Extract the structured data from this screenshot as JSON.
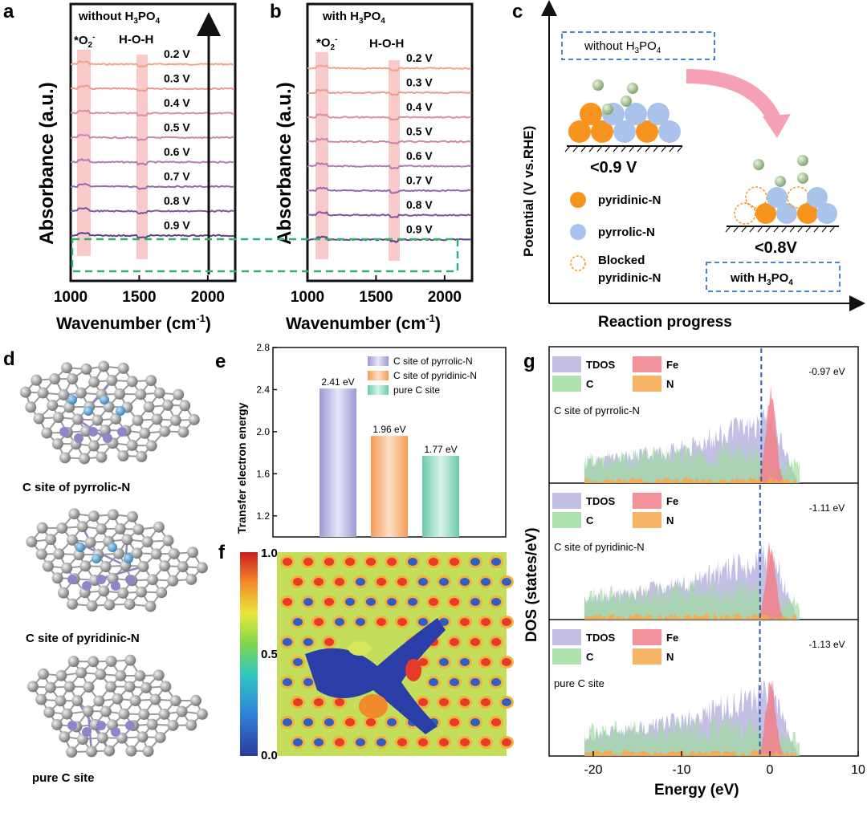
{
  "panels": {
    "a": "a",
    "b": "b",
    "c": "c",
    "d": "d",
    "e": "e",
    "f": "f",
    "g": "g"
  },
  "colors": {
    "pink_band": "#f4a6a6",
    "green_dash": "#2db36f",
    "blue_dash": "#4a86d0",
    "orange": "#f7941d",
    "blue_atom": "#a9c3ea",
    "pyrrolic": "#b7b7e0",
    "pyridinic": "#f8b27a",
    "pure_c": "#8fd8c0",
    "tdos": "#b8b4e0",
    "fe": "#f27f8a",
    "c_dos": "#9fdca0",
    "n_dos": "#f7a74c"
  },
  "chart_data": [
    {
      "panel": "a",
      "type": "line",
      "title_main": "without H",
      "title_sub": "3",
      "title_mid": "PO",
      "title_sub2": "4",
      "xlabel": "Wavenumber (cm",
      "xlabel_sup": "-1",
      "xlabel_end": ")",
      "ylabel": "Absorbance (a.u.)",
      "xticks": [
        "1000",
        "1500",
        "2000"
      ],
      "xlim": [
        1000,
        2200
      ],
      "band_labels": {
        "o2": "*O",
        "o2_sub": "2",
        "o2_sup": "-",
        "hoh": "H-O-H"
      },
      "series": [
        {
          "name": "0.2 V",
          "color": "#f2a488"
        },
        {
          "name": "0.3 V",
          "color": "#ee9a8e"
        },
        {
          "name": "0.4 V",
          "color": "#dd8fa0"
        },
        {
          "name": "0.5 V",
          "color": "#c886ad"
        },
        {
          "name": "0.6 V",
          "color": "#b07cb2"
        },
        {
          "name": "0.7 V",
          "color": "#9669ad"
        },
        {
          "name": "0.8 V",
          "color": "#7e579f"
        },
        {
          "name": "0.9 V",
          "color": "#5e3f8a"
        }
      ]
    },
    {
      "panel": "b",
      "type": "line",
      "title_main": "with H",
      "title_sub": "3",
      "title_mid": "PO",
      "title_sub2": "4",
      "xlabel": "Wavenumber (cm",
      "xlabel_sup": "-1",
      "xlabel_end": ")",
      "ylabel": "Absorbance (a.u.)",
      "xticks": [
        "1000",
        "1500",
        "2000"
      ],
      "xlim": [
        1000,
        2200
      ],
      "band_labels": {
        "o2": "*O",
        "o2_sub": "2",
        "o2_sup": "-",
        "hoh": "H-O-H"
      },
      "series": [
        {
          "name": "0.2 V",
          "color": "#f2a488"
        },
        {
          "name": "0.3 V",
          "color": "#ee9a8e"
        },
        {
          "name": "0.4 V",
          "color": "#dd8fa0"
        },
        {
          "name": "0.5 V",
          "color": "#c886ad"
        },
        {
          "name": "0.6 V",
          "color": "#b07cb2"
        },
        {
          "name": "0.7 V",
          "color": "#9669ad"
        },
        {
          "name": "0.8 V",
          "color": "#7e579f"
        },
        {
          "name": "0.9 V",
          "color": "#5e3f8a"
        }
      ]
    },
    {
      "panel": "e",
      "type": "bar",
      "ylabel": "Transfer electron energy",
      "yticks": [
        "1.2",
        "1.6",
        "2.0",
        "2.4",
        "2.8"
      ],
      "ylim": [
        1.0,
        2.8
      ],
      "categories": [
        "C site of pyrrolic-N",
        "C site of pyridinic-N",
        "pure C site"
      ],
      "values": [
        2.41,
        1.96,
        1.77
      ],
      "value_labels": [
        "2.41 eV",
        "1.96 eV",
        "1.77 eV"
      ]
    },
    {
      "panel": "g",
      "type": "area",
      "xlabel": "Energy (eV)",
      "ylabel": "DOS (states/eV)",
      "xticks": [
        "-20",
        "-10",
        "0",
        "10"
      ],
      "xlim": [
        -25,
        10
      ],
      "legend": [
        "TDOS",
        "Fe",
        "C",
        "N"
      ],
      "subpanels": [
        {
          "label": "C site of pyrrolic-N",
          "fermi_label": "-0.97 eV",
          "fermi": -0.97
        },
        {
          "label": "C site of pyridinic-N",
          "fermi_label": "-1.11 eV",
          "fermi": -1.11
        },
        {
          "label": "pure C site",
          "fermi_label": "-1.13 eV",
          "fermi": -1.13
        }
      ]
    }
  ],
  "panel_c": {
    "ylabel": "Potential (V vs.RHE)",
    "xlabel": "Reaction progress",
    "box_without": "without H",
    "box_with": "with H",
    "box_sub1": "3",
    "box_mid": "PO",
    "box_sub2": "4",
    "potential_1": "<0.9 V",
    "potential_2": "<0.8V",
    "legend": [
      "pyridinic-N",
      "pyrrolic-N",
      "Blocked",
      "pyridinic-N"
    ]
  },
  "panel_d": {
    "labels": [
      "C site of pyrrolic-N",
      "C site of pyridinic-N",
      "pure C site"
    ]
  },
  "panel_f": {
    "colorbar_ticks": [
      "1.0",
      "0.5",
      "0.0"
    ]
  }
}
